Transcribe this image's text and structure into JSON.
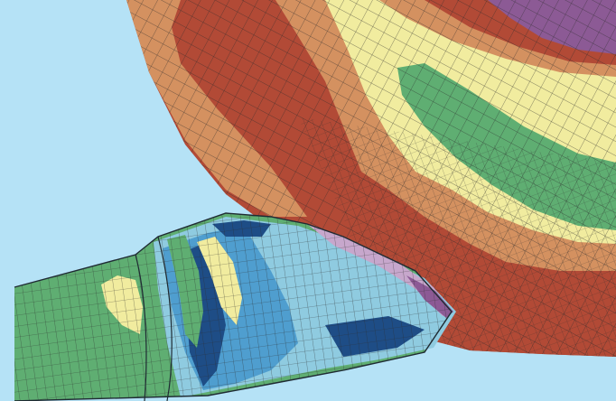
{
  "image": {
    "subject": "fea-contour-mesh",
    "icons": [
      "mesh-pattern"
    ]
  },
  "colors": {
    "background": "#b5e2f6",
    "side_strip": "#6dcfc8",
    "mesh_lines": "#2b2b2b",
    "contour_red": "#b24a36",
    "contour_orange": "#d49160",
    "contour_yellow": "#f1ec9f",
    "contour_green": "#5fae72",
    "contour_purple": "#8c5a95",
    "contour_lavender": "#c7a7cc",
    "contour_light_blue": "#8fcbe0",
    "contour_blue": "#4f9ecf",
    "contour_dark_blue": "#1e4d86"
  }
}
